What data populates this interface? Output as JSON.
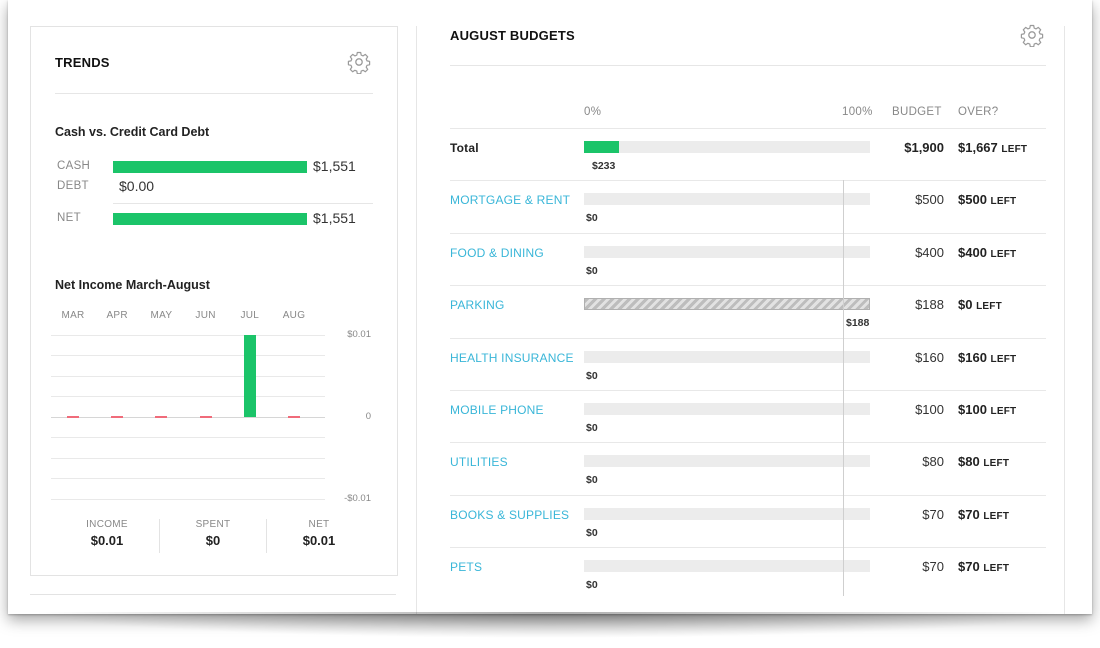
{
  "trends": {
    "title": "TRENDS",
    "gear_icon": "gear-icon",
    "cash_vs_debt": {
      "title": "Cash vs. Credit Card Debt",
      "rows": [
        {
          "label": "CASH",
          "value": "$1,551",
          "amount": 1551
        },
        {
          "label": "DEBT",
          "value": "$0.00",
          "amount": 0
        },
        {
          "label": "NET",
          "value": "$1,551",
          "amount": 1551
        }
      ]
    },
    "net_income": {
      "title": "Net Income March-August",
      "months": [
        "MAR",
        "APR",
        "MAY",
        "JUN",
        "JUL",
        "AUG"
      ],
      "values": [
        0,
        0,
        0,
        0,
        0.01,
        0
      ],
      "axis": {
        "top": "$0.01",
        "mid": "0",
        "bottom": "-$0.01"
      },
      "ylim": [
        -0.01,
        0.01
      ]
    },
    "summary": [
      {
        "label": "INCOME",
        "value": "$0.01"
      },
      {
        "label": "SPENT",
        "value": "$0"
      },
      {
        "label": "NET",
        "value": "$0.01"
      }
    ]
  },
  "budgets": {
    "title": "AUGUST BUDGETS",
    "gear_icon": "gear-icon",
    "columns": {
      "zero": "0%",
      "hundred": "100%",
      "budget": "BUDGET",
      "over": "OVER?"
    },
    "total": {
      "name": "Total",
      "spent": "$233",
      "budget": "$1,900",
      "left": "$1,667",
      "left_suffix": "LEFT",
      "fraction": 0.123
    },
    "items": [
      {
        "name": "MORTGAGE & RENT",
        "spent": "$0",
        "budget": "$500",
        "left": "$500",
        "left_suffix": "LEFT",
        "fraction": 0
      },
      {
        "name": "FOOD & DINING",
        "spent": "$0",
        "budget": "$400",
        "left": "$400",
        "left_suffix": "LEFT",
        "fraction": 0
      },
      {
        "name": "PARKING",
        "spent": "$188",
        "budget": "$188",
        "left": "$0",
        "left_suffix": "LEFT",
        "fraction": 1.0
      },
      {
        "name": "HEALTH INSURANCE",
        "spent": "$0",
        "budget": "$160",
        "left": "$160",
        "left_suffix": "LEFT",
        "fraction": 0
      },
      {
        "name": "MOBILE PHONE",
        "spent": "$0",
        "budget": "$100",
        "left": "$100",
        "left_suffix": "LEFT",
        "fraction": 0
      },
      {
        "name": "UTILITIES",
        "spent": "$0",
        "budget": "$80",
        "left": "$80",
        "left_suffix": "LEFT",
        "fraction": 0
      },
      {
        "name": "BOOKS & SUPPLIES",
        "spent": "$0",
        "budget": "$70",
        "left": "$70",
        "left_suffix": "LEFT",
        "fraction": 0
      },
      {
        "name": "PETS",
        "spent": "$0",
        "budget": "$70",
        "left": "$70",
        "left_suffix": "LEFT",
        "fraction": 0
      }
    ]
  },
  "colors": {
    "accent_green": "#1bc469",
    "link_blue": "#39b6d8",
    "negative_red": "#f06b7a"
  }
}
